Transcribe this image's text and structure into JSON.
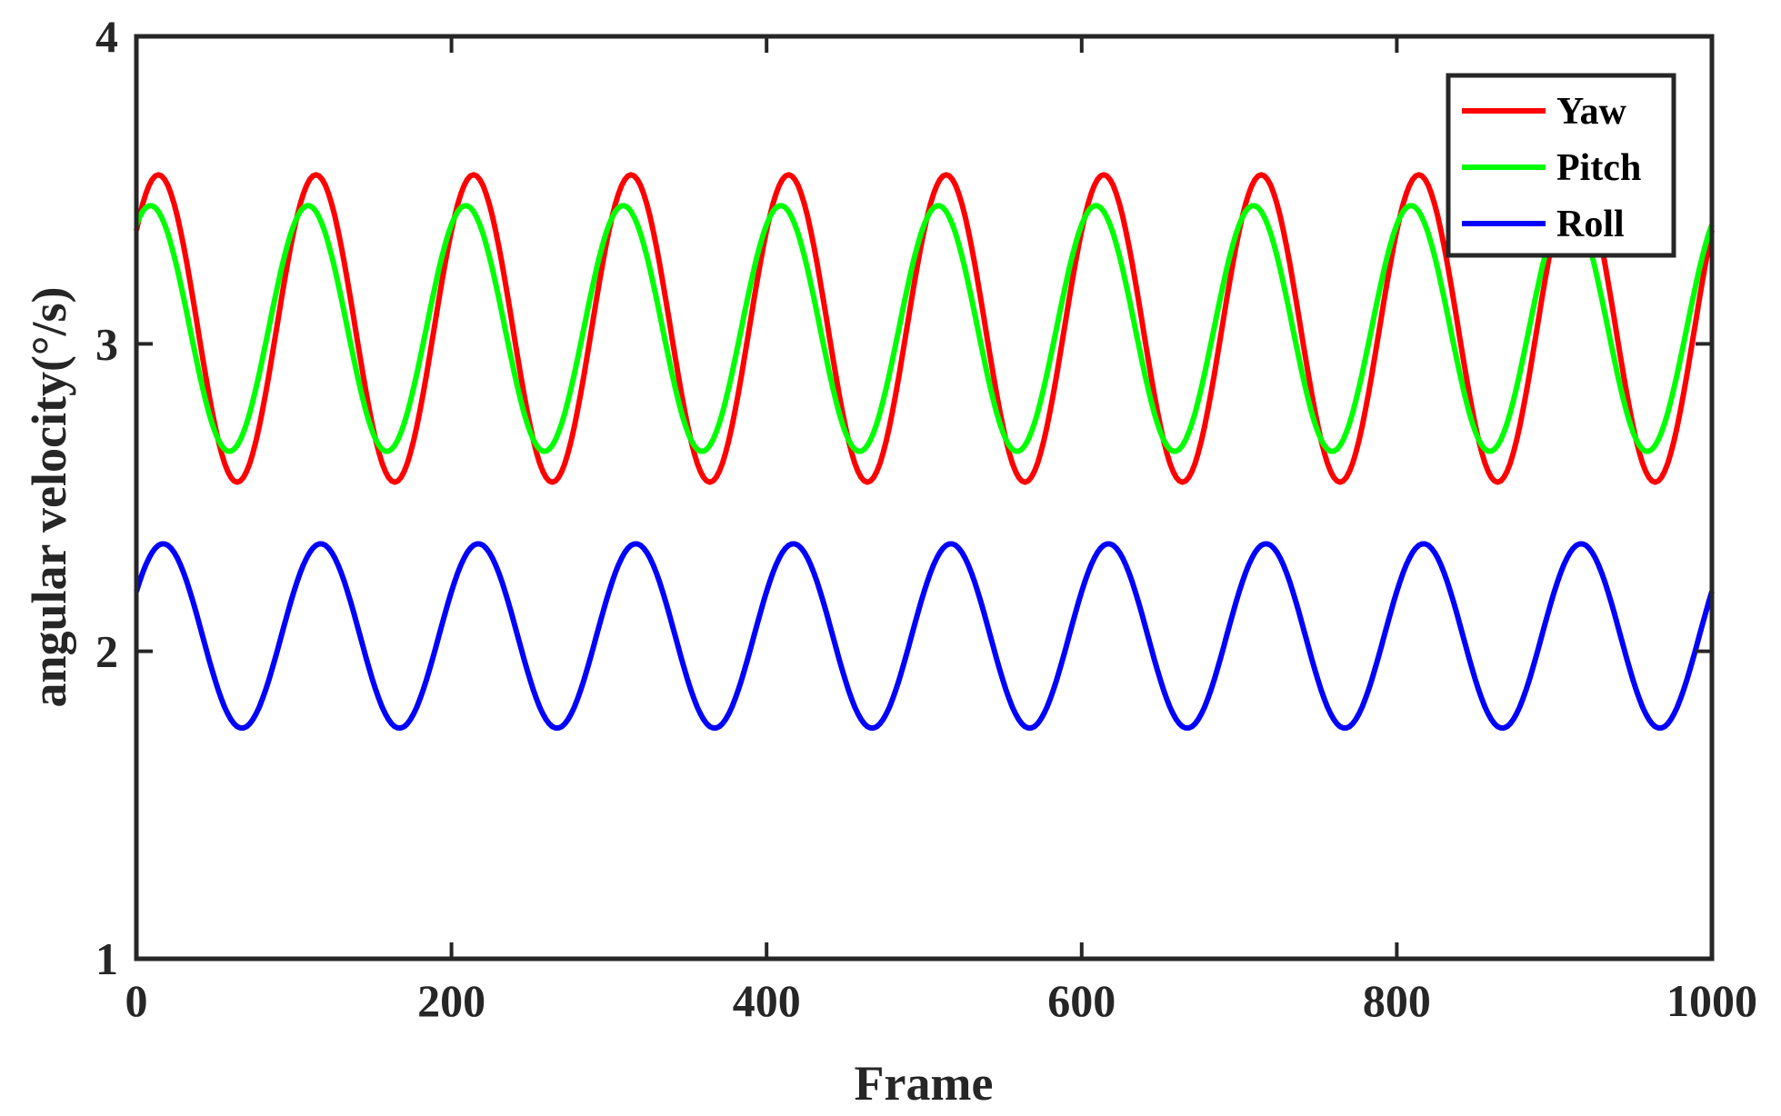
{
  "chart_data": {
    "type": "line",
    "xlabel": "Frame",
    "ylabel": "angular velocity(°/s)",
    "xlim": [
      0,
      1000
    ],
    "ylim": [
      1,
      4
    ],
    "xticks": [
      "0",
      "200",
      "400",
      "600",
      "800",
      "1000"
    ],
    "yticks": [
      "1",
      "2",
      "3",
      "4"
    ],
    "grid": false,
    "legend_position": "top-right",
    "series": [
      {
        "name": "Yaw",
        "color": "#ff0000",
        "mean": 3.05,
        "amplitude": 0.5,
        "period": 100,
        "peak_frame": 14
      },
      {
        "name": "Pitch",
        "color": "#00ff00",
        "mean": 3.05,
        "amplitude": 0.4,
        "period": 100,
        "peak_frame": 9
      },
      {
        "name": "Roll",
        "color": "#0000ff",
        "mean": 2.05,
        "amplitude": 0.3,
        "period": 100,
        "peak_frame": 17
      }
    ]
  }
}
